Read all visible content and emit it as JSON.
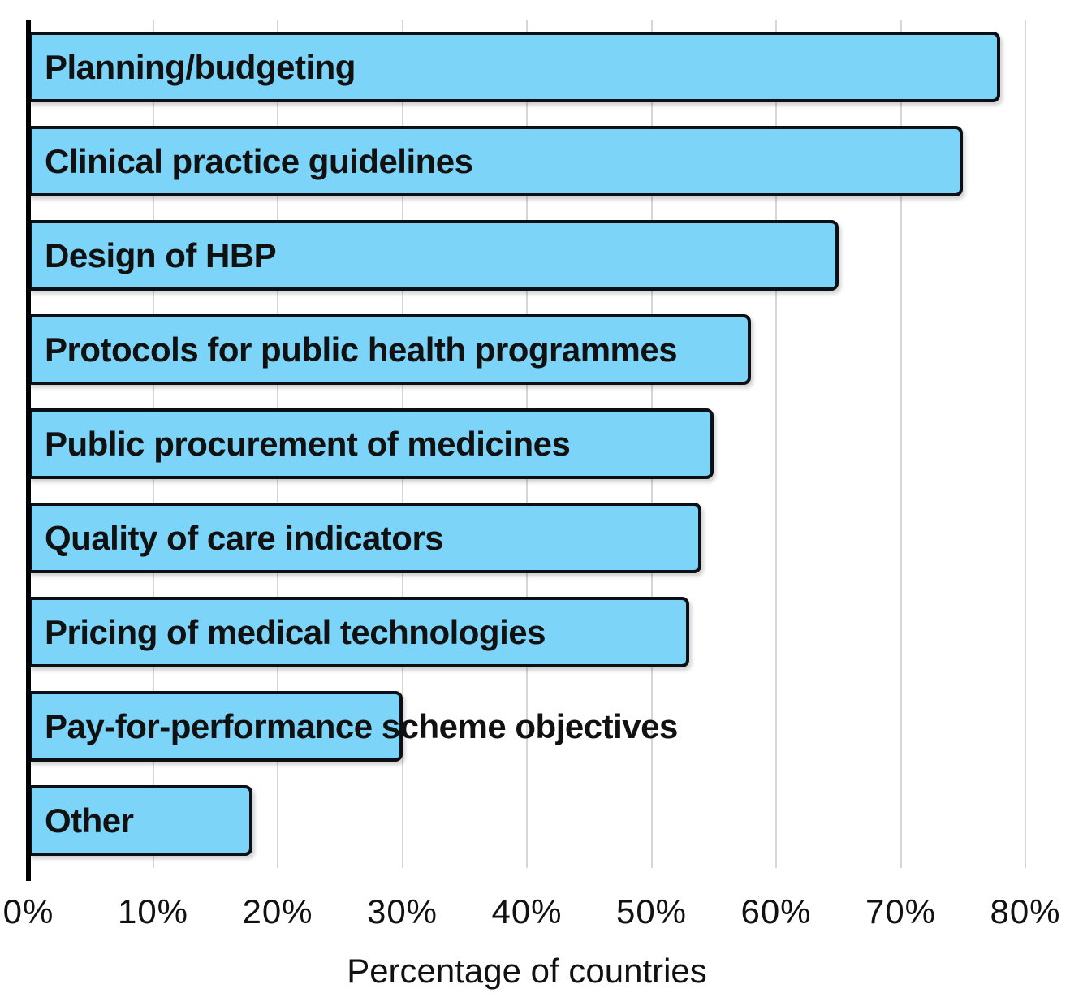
{
  "chart_data": {
    "type": "bar",
    "orientation": "horizontal",
    "title": "",
    "categories": [
      "Planning/budgeting",
      "Clinical practice guidelines",
      "Design of HBP",
      "Protocols for public health programmes",
      "Public procurement of medicines",
      "Quality of care indicators",
      "Pricing of medical technologies",
      "Pay-for-performance scheme objectives",
      "Other"
    ],
    "values": [
      78,
      75,
      65,
      58,
      55,
      54,
      53,
      30,
      18
    ],
    "unit": "%",
    "xlabel": "Percentage of countries",
    "ylabel": "",
    "xlim": [
      0,
      80
    ],
    "xticks": [
      {
        "value": 0,
        "label": "0%"
      },
      {
        "value": 10,
        "label": "10%"
      },
      {
        "value": 20,
        "label": "20%"
      },
      {
        "value": 30,
        "label": "30%"
      },
      {
        "value": 40,
        "label": "40%"
      },
      {
        "value": 50,
        "label": "50%"
      },
      {
        "value": 60,
        "label": "60%"
      },
      {
        "value": 70,
        "label": "70%"
      },
      {
        "value": 80,
        "label": "80%"
      }
    ],
    "grid": true,
    "legend": "none",
    "bar_label_position": "inside-left"
  },
  "style": {
    "bar_fill": "#7cd4f8",
    "bar_border": "#0b1016",
    "gridline": "#d6d6d6",
    "axis_line": "#000000",
    "text": "#111111",
    "background": "#ffffff"
  }
}
